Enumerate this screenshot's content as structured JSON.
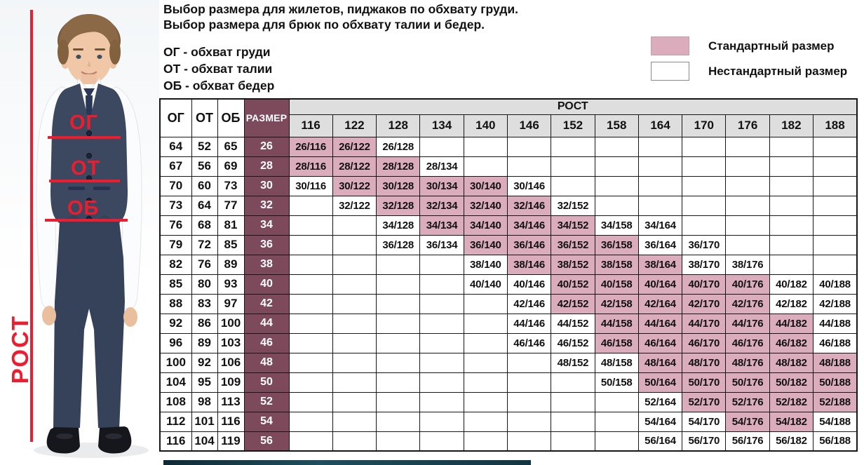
{
  "intro": {
    "line1": "Выбор размера для жилетов, пиджаков по обхвату груди.",
    "line2": "Выбор размера для брюк по обхвату талии и бедер.",
    "abbr1": "ОГ - обхват груди",
    "abbr2": "ОТ - обхват талии",
    "abbr3": "ОБ - обхват бедер"
  },
  "legend": {
    "standard_label": "Стандартный размер",
    "standard_color": "#dbadbc",
    "nonstandard_label": "Нестандартный размер",
    "nonstandard_color": "#ffffff"
  },
  "figure": {
    "chest_label": "ОГ",
    "waist_label": "ОТ",
    "hips_label": "ОБ",
    "height_label": "РОСТ",
    "accent_color": "#ed1c2e"
  },
  "table": {
    "columns": {
      "og": "ОГ",
      "ot": "ОТ",
      "ob": "ОБ",
      "size": "РАЗМЕР",
      "rost": "РОСТ"
    },
    "heights": [
      116,
      122,
      128,
      134,
      140,
      146,
      152,
      158,
      164,
      170,
      176,
      182,
      188
    ],
    "colors": {
      "standard": "#dbadbc",
      "size_column": "#7d4a5c",
      "header_bg": "#dedede"
    },
    "rows": [
      {
        "og": 64,
        "ot": 52,
        "ob": 65,
        "size": 26,
        "cells": [
          [
            "26/116",
            1
          ],
          [
            "26/122",
            1
          ],
          [
            "26/128",
            0
          ],
          null,
          null,
          null,
          null,
          null,
          null,
          null,
          null,
          null,
          null
        ]
      },
      {
        "og": 67,
        "ot": 56,
        "ob": 69,
        "size": 28,
        "cells": [
          [
            "28/116",
            1
          ],
          [
            "28/122",
            1
          ],
          [
            "28/128",
            1
          ],
          [
            "28/134",
            0
          ],
          null,
          null,
          null,
          null,
          null,
          null,
          null,
          null,
          null
        ]
      },
      {
        "og": 70,
        "ot": 60,
        "ob": 73,
        "size": 30,
        "cells": [
          [
            "30/116",
            0
          ],
          [
            "30/122",
            1
          ],
          [
            "30/128",
            1
          ],
          [
            "30/134",
            1
          ],
          [
            "30/140",
            1
          ],
          [
            "30/146",
            0
          ],
          null,
          null,
          null,
          null,
          null,
          null,
          null
        ]
      },
      {
        "og": 73,
        "ot": 64,
        "ob": 77,
        "size": 32,
        "cells": [
          null,
          [
            "32/122",
            0
          ],
          [
            "32/128",
            1
          ],
          [
            "32/134",
            1
          ],
          [
            "32/140",
            1
          ],
          [
            "32/146",
            1
          ],
          [
            "32/152",
            0
          ],
          null,
          null,
          null,
          null,
          null,
          null
        ]
      },
      {
        "og": 76,
        "ot": 68,
        "ob": 81,
        "size": 34,
        "cells": [
          null,
          null,
          [
            "34/128",
            0
          ],
          [
            "34/134",
            1
          ],
          [
            "34/140",
            1
          ],
          [
            "34/146",
            1
          ],
          [
            "34/152",
            1
          ],
          [
            "34/158",
            0
          ],
          [
            "34/164",
            0
          ],
          null,
          null,
          null,
          null
        ]
      },
      {
        "og": 79,
        "ot": 72,
        "ob": 85,
        "size": 36,
        "cells": [
          null,
          null,
          [
            "36/128",
            0
          ],
          [
            "36/134",
            0
          ],
          [
            "36/140",
            1
          ],
          [
            "36/146",
            1
          ],
          [
            "36/152",
            1
          ],
          [
            "36/158",
            1
          ],
          [
            "36/164",
            0
          ],
          [
            "36/170",
            0
          ],
          null,
          null,
          null
        ]
      },
      {
        "og": 82,
        "ot": 76,
        "ob": 89,
        "size": 38,
        "cells": [
          null,
          null,
          null,
          null,
          [
            "38/140",
            0
          ],
          [
            "38/146",
            1
          ],
          [
            "38/152",
            1
          ],
          [
            "38/158",
            1
          ],
          [
            "38/164",
            1
          ],
          [
            "38/170",
            0
          ],
          [
            "38/176",
            0
          ],
          null,
          null
        ]
      },
      {
        "og": 85,
        "ot": 80,
        "ob": 93,
        "size": 40,
        "cells": [
          null,
          null,
          null,
          null,
          [
            "40/140",
            0
          ],
          [
            "40/146",
            0
          ],
          [
            "40/152",
            1
          ],
          [
            "40/158",
            1
          ],
          [
            "40/164",
            1
          ],
          [
            "40/170",
            1
          ],
          [
            "40/176",
            1
          ],
          [
            "40/182",
            0
          ],
          [
            "40/188",
            0
          ]
        ]
      },
      {
        "og": 88,
        "ot": 83,
        "ob": 97,
        "size": 42,
        "cells": [
          null,
          null,
          null,
          null,
          null,
          [
            "42/146",
            0
          ],
          [
            "42/152",
            1
          ],
          [
            "42/158",
            1
          ],
          [
            "42/164",
            1
          ],
          [
            "42/170",
            1
          ],
          [
            "42/176",
            1
          ],
          [
            "42/182",
            0
          ],
          [
            "42/188",
            0
          ]
        ]
      },
      {
        "og": 92,
        "ot": 86,
        "ob": 100,
        "size": 44,
        "cells": [
          null,
          null,
          null,
          null,
          null,
          [
            "44/146",
            0
          ],
          [
            "44/152",
            0
          ],
          [
            "44/158",
            1
          ],
          [
            "44/164",
            1
          ],
          [
            "44/170",
            1
          ],
          [
            "44/176",
            1
          ],
          [
            "44/182",
            1
          ],
          [
            "44/188",
            0
          ]
        ]
      },
      {
        "og": 96,
        "ot": 89,
        "ob": 103,
        "size": 46,
        "cells": [
          null,
          null,
          null,
          null,
          null,
          [
            "46/146",
            0
          ],
          [
            "46/152",
            0
          ],
          [
            "46/158",
            1
          ],
          [
            "46/164",
            1
          ],
          [
            "46/170",
            1
          ],
          [
            "46/176",
            1
          ],
          [
            "46/182",
            1
          ],
          [
            "46/188",
            0
          ]
        ]
      },
      {
        "og": 100,
        "ot": 92,
        "ob": 106,
        "size": 48,
        "cells": [
          null,
          null,
          null,
          null,
          null,
          null,
          [
            "48/152",
            0
          ],
          [
            "48/158",
            0
          ],
          [
            "48/164",
            1
          ],
          [
            "48/170",
            1
          ],
          [
            "48/176",
            1
          ],
          [
            "48/182",
            1
          ],
          [
            "48/188",
            1
          ]
        ]
      },
      {
        "og": 104,
        "ot": 95,
        "ob": 109,
        "size": 50,
        "cells": [
          null,
          null,
          null,
          null,
          null,
          null,
          null,
          [
            "50/158",
            0
          ],
          [
            "50/164",
            1
          ],
          [
            "50/170",
            1
          ],
          [
            "50/176",
            1
          ],
          [
            "50/182",
            1
          ],
          [
            "50/188",
            1
          ]
        ]
      },
      {
        "og": 108,
        "ot": 98,
        "ob": 113,
        "size": 52,
        "cells": [
          null,
          null,
          null,
          null,
          null,
          null,
          null,
          null,
          [
            "52/164",
            0
          ],
          [
            "52/170",
            1
          ],
          [
            "52/176",
            1
          ],
          [
            "52/182",
            1
          ],
          [
            "52/188",
            1
          ]
        ]
      },
      {
        "og": 112,
        "ot": 101,
        "ob": 116,
        "size": 54,
        "cells": [
          null,
          null,
          null,
          null,
          null,
          null,
          null,
          null,
          [
            "54/164",
            0
          ],
          [
            "54/170",
            0
          ],
          [
            "54/176",
            1
          ],
          [
            "54/182",
            1
          ],
          [
            "54/188",
            0
          ]
        ]
      },
      {
        "og": 116,
        "ot": 104,
        "ob": 119,
        "size": 56,
        "cells": [
          null,
          null,
          null,
          null,
          null,
          null,
          null,
          null,
          [
            "56/164",
            0
          ],
          [
            "56/170",
            0
          ],
          [
            "56/176",
            0
          ],
          [
            "56/182",
            0
          ],
          [
            "56/188",
            0
          ]
        ]
      }
    ]
  }
}
